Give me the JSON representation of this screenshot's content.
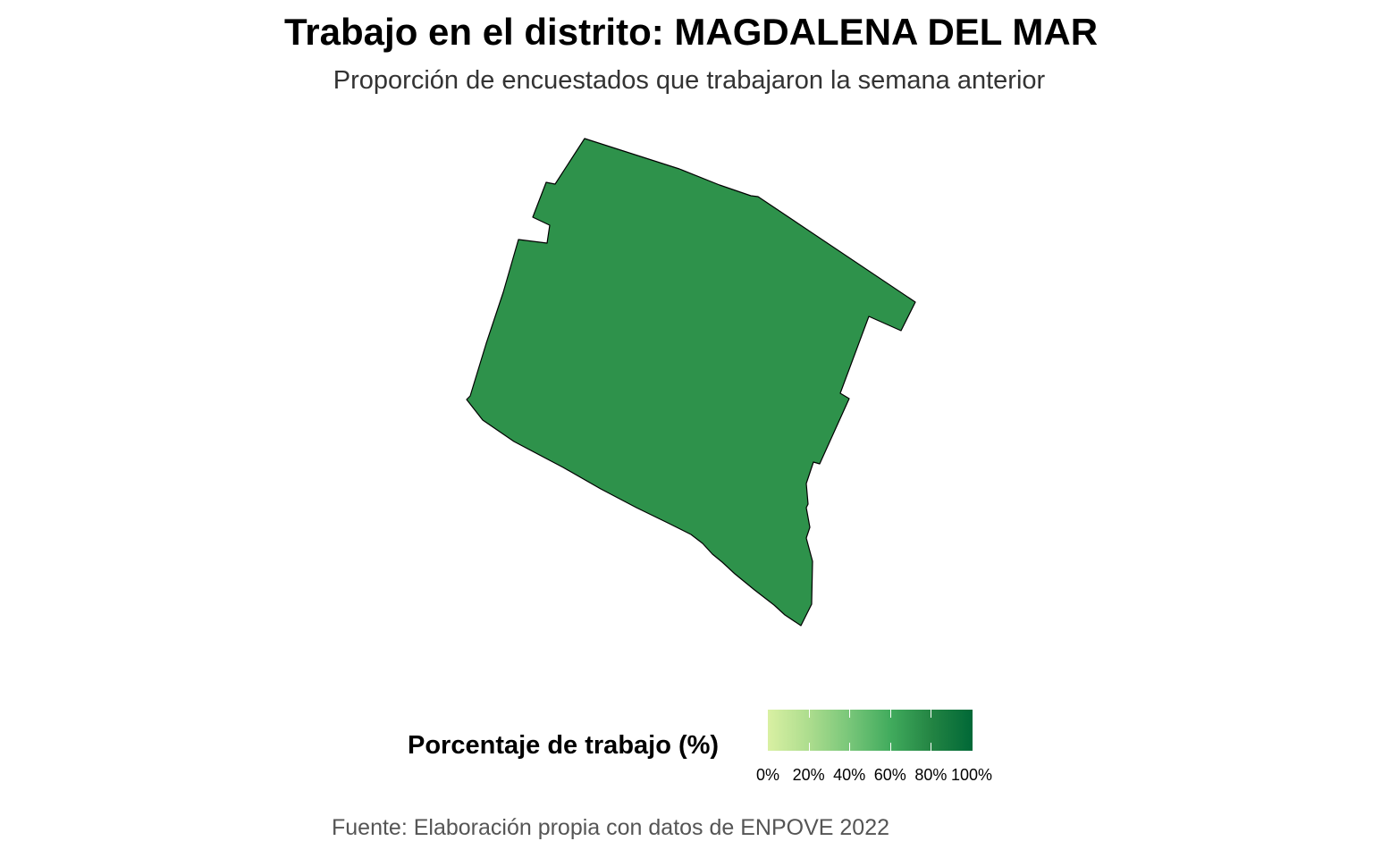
{
  "title": "Trabajo en el distrito: MAGDALENA DEL MAR",
  "subtitle": "Proporción de encuestados que trabajaron la semana anterior",
  "caption": "Fuente: Elaboración propia con datos de ENPOVE 2022",
  "map": {
    "region_name": "MAGDALENA DEL MAR",
    "value_percent": 76,
    "fill_color": "#2e924b",
    "border_color": "#000000"
  },
  "legend": {
    "title": "Porcentaje de trabajo (%)",
    "scale_min": 0,
    "scale_max": 100,
    "ticks": [
      {
        "value": 0,
        "label": "0%"
      },
      {
        "value": 20,
        "label": "20%"
      },
      {
        "value": 40,
        "label": "40%"
      },
      {
        "value": 60,
        "label": "60%"
      },
      {
        "value": 80,
        "label": "80%"
      },
      {
        "value": 100,
        "label": "100%"
      }
    ],
    "gradient_colors": [
      "#d9f0a3",
      "#addd8e",
      "#78c679",
      "#41ab5d",
      "#238443",
      "#006837"
    ]
  }
}
